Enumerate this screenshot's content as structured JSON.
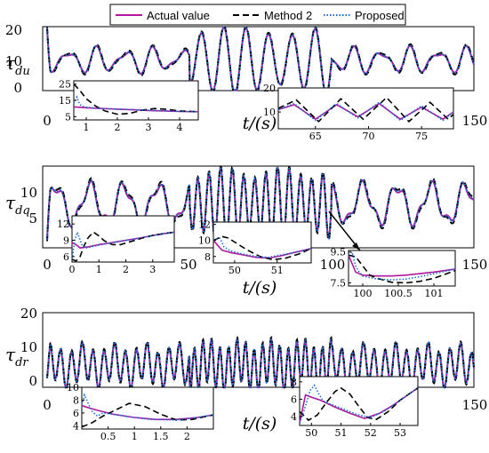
{
  "colors": {
    "actual": "#b0189f",
    "method2": "#000000",
    "proposed": "#1a6fd0"
  },
  "legend": {
    "actual": "Actual value",
    "method2": "Method 2",
    "proposed": "Proposed"
  },
  "chart_data": [
    {
      "type": "line",
      "ylabel_symbol": "τ",
      "ylabel_sub": "du",
      "xlabel": "t/(s)",
      "xlim": [
        0,
        150
      ],
      "ylim": [
        0,
        20
      ],
      "xticks": [
        "0",
        "150"
      ],
      "yticks": [
        "0",
        "10",
        "20"
      ],
      "signal": {
        "base": 10.5,
        "waves": [
          [
            3,
            10
          ],
          [
            1.5,
            6.5
          ]
        ],
        "mid": [
          [
            9,
            8,
            15
          ],
          [
            8,
            8,
            14
          ]
        ],
        "start": 0.5,
        "end": 9.5
      },
      "insets": [
        {
          "xlim": [
            0.6,
            4.6
          ],
          "ylim": [
            3,
            27
          ],
          "xticks": [
            "1",
            "2",
            "3",
            "4"
          ],
          "yticks": [
            "5",
            "15",
            "25"
          ],
          "series": {
            "actual": {
              "x": [
                0.6,
                1.0,
                1.5,
                2.0,
                2.5,
                3.0,
                3.5,
                4.0,
                4.6
              ],
              "y": [
                11,
                10.5,
                10,
                9.6,
                9.2,
                8.8,
                8.5,
                8.2,
                8
              ]
            },
            "method2": {
              "x": [
                0.6,
                0.8,
                1.0,
                1.3,
                1.6,
                2.0,
                2.4,
                2.8,
                3.2,
                3.6,
                4.0,
                4.6
              ],
              "y": [
                25,
                21,
                16,
                11.5,
                8.5,
                6.5,
                7,
                9,
                10,
                9.5,
                8.5,
                8
              ]
            },
            "proposed": {
              "x": [
                0.6,
                0.7,
                0.78,
                0.85,
                1.0,
                1.3,
                1.8,
                2.5,
                3.2,
                4.0,
                4.6
              ],
              "y": [
                13,
                17,
                13,
                11.5,
                10.8,
                10.2,
                9.8,
                9.3,
                8.8,
                8.3,
                8
              ]
            }
          }
        },
        {
          "xlim": [
            61.5,
            78
          ],
          "ylim": [
            3,
            20
          ],
          "xticks": [
            "65",
            "70",
            "75"
          ],
          "yticks": [
            "10",
            "20"
          ],
          "series": {
            "actual": {
              "x": [
                61.5,
                63,
                65,
                67,
                69,
                71,
                73,
                75,
                77,
                78
              ],
              "y": [
                11,
                13,
                7,
                13,
                8,
                13.5,
                7,
                12,
                7,
                10
              ]
            },
            "method2": {
              "x": [
                61.5,
                63.2,
                65.3,
                67.4,
                69.5,
                71.7,
                73.8,
                75.8,
                77.5,
                78
              ],
              "y": [
                11.5,
                15,
                6,
                15.5,
                7,
                16,
                6,
                14,
                7,
                9
              ]
            },
            "proposed": {
              "x": [
                61.5,
                63,
                65,
                67,
                69,
                71,
                73,
                75,
                77,
                78
              ],
              "y": [
                11,
                13.5,
                6.5,
                13.5,
                7.5,
                14,
                6.5,
                12.5,
                6.5,
                10
              ]
            }
          }
        }
      ]
    },
    {
      "type": "line",
      "ylabel_symbol": "τ",
      "ylabel_sub": "dq",
      "xlabel": "t/(s)",
      "xlim": [
        0,
        150
      ],
      "ylim": [
        0,
        16
      ],
      "xticks": [
        "0",
        "50",
        "100",
        "150"
      ],
      "yticks": [
        "5",
        "10"
      ],
      "signal": {
        "base": 8.5,
        "waves": [
          [
            3.5,
            12
          ],
          [
            1.2,
            5
          ]
        ],
        "mid": [
          [
            6,
            4,
            16
          ],
          [
            6,
            4,
            12
          ]
        ],
        "start": 1.5,
        "end": 7.5
      },
      "insets": [
        {
          "xlim": [
            0,
            3.8
          ],
          "ylim": [
            5,
            13.5
          ],
          "xticks": [
            "0",
            "1",
            "2",
            "3"
          ],
          "yticks": [
            "6",
            "9",
            "12"
          ],
          "series": {
            "actual": {
              "x": [
                0,
                0.15,
                0.3,
                0.6,
                1.0,
                1.5,
                2.0,
                2.5,
                3.0,
                3.5,
                3.8
              ],
              "y": [
                8.6,
                8.2,
                7.6,
                7.8,
                8.2,
                8.6,
                9.0,
                9.4,
                9.9,
                10.3,
                10.5
              ]
            },
            "method2": {
              "x": [
                0,
                0.15,
                0.3,
                0.45,
                0.6,
                0.8,
                1.0,
                1.2,
                1.5,
                1.8,
                2.2,
                2.6,
                3.0,
                3.5,
                3.8
              ],
              "y": [
                5.5,
                5.2,
                6,
                8,
                9.5,
                10.5,
                9.8,
                8.9,
                8.2,
                8.2,
                8.8,
                9.4,
                9.9,
                10.3,
                10.5
              ]
            },
            "proposed": {
              "x": [
                0,
                0.1,
                0.2,
                0.3,
                0.4,
                0.55,
                0.8,
                1.2,
                1.8,
                2.5,
                3.2,
                3.8
              ],
              "y": [
                5.5,
                9,
                10.5,
                9,
                7.8,
                7.6,
                7.9,
                8.3,
                8.8,
                9.4,
                10,
                10.5
              ]
            }
          }
        },
        {
          "xlim": [
            49.5,
            51.8
          ],
          "ylim": [
            7.2,
            12.3
          ],
          "xticks": [
            "50",
            "51"
          ],
          "yticks": [
            "8",
            "10",
            "12"
          ],
          "series": {
            "actual": {
              "x": [
                49.5,
                49.7,
                49.9,
                50.2,
                50.5,
                50.8,
                51.1,
                51.4,
                51.8
              ],
              "y": [
                10,
                8.8,
                8.5,
                8.2,
                7.9,
                7.8,
                8.1,
                8.5,
                9
              ]
            },
            "method2": {
              "x": [
                49.5,
                49.7,
                49.85,
                50.0,
                50.3,
                50.6,
                50.9,
                51.2,
                51.5,
                51.8
              ],
              "y": [
                10,
                10.5,
                10.3,
                9.8,
                8.8,
                8.0,
                7.6,
                7.8,
                8.3,
                9
              ]
            },
            "proposed": {
              "x": [
                49.5,
                49.65,
                49.75,
                49.9,
                50.2,
                50.5,
                50.8,
                51.1,
                51.5,
                51.8
              ],
              "y": [
                10,
                10.3,
                9.2,
                8.7,
                8.3,
                8.0,
                7.9,
                8.2,
                8.6,
                9
              ]
            }
          }
        },
        {
          "xlim": [
            99.8,
            101.3
          ],
          "ylim": [
            7.3,
            9.6
          ],
          "xticks": [
            "100",
            "100.5",
            "101"
          ],
          "yticks": [
            "7.5",
            "9.5"
          ],
          "series": {
            "actual": {
              "x": [
                99.8,
                99.9,
                100.0,
                100.2,
                100.4,
                100.6,
                100.8,
                101.0,
                101.3
              ],
              "y": [
                9.3,
                8.2,
                8.0,
                7.95,
                7.95,
                8.0,
                8.1,
                8.2,
                8.4
              ]
            },
            "method2": {
              "x": [
                99.8,
                99.9,
                100.0,
                100.1,
                100.2,
                100.4,
                100.6,
                100.8,
                101.0,
                101.3
              ],
              "y": [
                9.3,
                9.2,
                8.6,
                8.0,
                7.8,
                7.55,
                7.5,
                7.6,
                7.8,
                8.3
              ]
            },
            "proposed": {
              "x": [
                99.8,
                99.85,
                99.9,
                99.95,
                100.0,
                100.2,
                100.4,
                100.6,
                100.8,
                101.0,
                101.3
              ],
              "y": [
                9.3,
                9.5,
                8.6,
                8.2,
                7.95,
                7.75,
                7.7,
                7.75,
                7.9,
                8.1,
                8.4
              ]
            }
          }
        }
      ]
    },
    {
      "type": "line",
      "ylabel_symbol": "τ",
      "ylabel_sub": "dr",
      "xlabel": "t/(s)",
      "xlim": [
        0,
        150
      ],
      "ylim": [
        0,
        20
      ],
      "xticks": [
        "0",
        "150"
      ],
      "yticks": [
        "0",
        "10",
        "20"
      ],
      "signal": {
        "base": 6,
        "waves": [
          [
            4.5,
            3.8
          ],
          [
            1.5,
            11
          ]
        ],
        "mid": [
          [
            5.5,
            3,
            14
          ],
          [
            5.5,
            3,
            14
          ]
        ],
        "start": 3,
        "end": 6.5
      },
      "insets": [
        {
          "xlim": [
            0,
            2.5
          ],
          "ylim": [
            3.5,
            10
          ],
          "xticks": [
            "0.5",
            "1",
            "1.5",
            "2"
          ],
          "yticks": [
            "4",
            "6",
            "8",
            "10"
          ],
          "series": {
            "actual": {
              "x": [
                0,
                0.05,
                0.3,
                0.6,
                1.0,
                1.4,
                1.8,
                2.2,
                2.5
              ],
              "y": [
                7.2,
                7,
                6.4,
                5.8,
                5.3,
                5.0,
                5.0,
                5.3,
                5.7
              ]
            },
            "method2": {
              "x": [
                0,
                0.2,
                0.4,
                0.6,
                0.9,
                1.2,
                1.5,
                1.8,
                2.1,
                2.5
              ],
              "y": [
                3.8,
                4.5,
                5.5,
                6.3,
                7.5,
                7.0,
                5.8,
                4.9,
                5.0,
                5.7
              ]
            },
            "proposed": {
              "x": [
                0,
                0.05,
                0.12,
                0.2,
                0.3,
                0.4,
                0.6,
                0.9,
                1.3,
                1.8,
                2.2,
                2.5
              ],
              "y": [
                7.2,
                8.8,
                7.5,
                6.2,
                5.5,
                6.0,
                5.8,
                5.4,
                5.0,
                4.9,
                5.3,
                5.7
              ]
            }
          }
        },
        {
          "xlim": [
            49.6,
            53.6
          ],
          "ylim": [
            3,
            8.6
          ],
          "xticks": [
            "50",
            "51",
            "52",
            "53"
          ],
          "yticks": [
            "4",
            "6",
            "8"
          ],
          "series": {
            "actual": {
              "x": [
                49.6,
                49.8,
                49.95,
                50.3,
                50.8,
                51.3,
                51.8,
                52.3,
                52.8,
                53.3,
                53.6
              ],
              "y": [
                3.3,
                6.5,
                6.3,
                5.9,
                5.1,
                4.4,
                3.8,
                4.4,
                5.4,
                6.6,
                7.3
              ]
            },
            "method2": {
              "x": [
                49.6,
                49.9,
                50.2,
                50.5,
                50.8,
                51.0,
                51.3,
                51.6,
                51.9,
                52.2,
                52.6,
                53.0,
                53.6
              ],
              "y": [
                4.6,
                3.6,
                4.2,
                5.6,
                6.9,
                7.3,
                6.6,
                5.2,
                3.9,
                3.7,
                4.6,
                5.9,
                7.3
              ]
            },
            "proposed": {
              "x": [
                49.6,
                49.8,
                49.95,
                50.1,
                50.25,
                50.4,
                50.6,
                51.0,
                51.5,
                52.0,
                52.5,
                53.0,
                53.6
              ],
              "y": [
                3.3,
                5.2,
                7.0,
                7.6,
                6.6,
                5.8,
                5.5,
                5.0,
                4.3,
                3.9,
                4.7,
                5.9,
                7.3
              ]
            }
          }
        }
      ]
    }
  ]
}
